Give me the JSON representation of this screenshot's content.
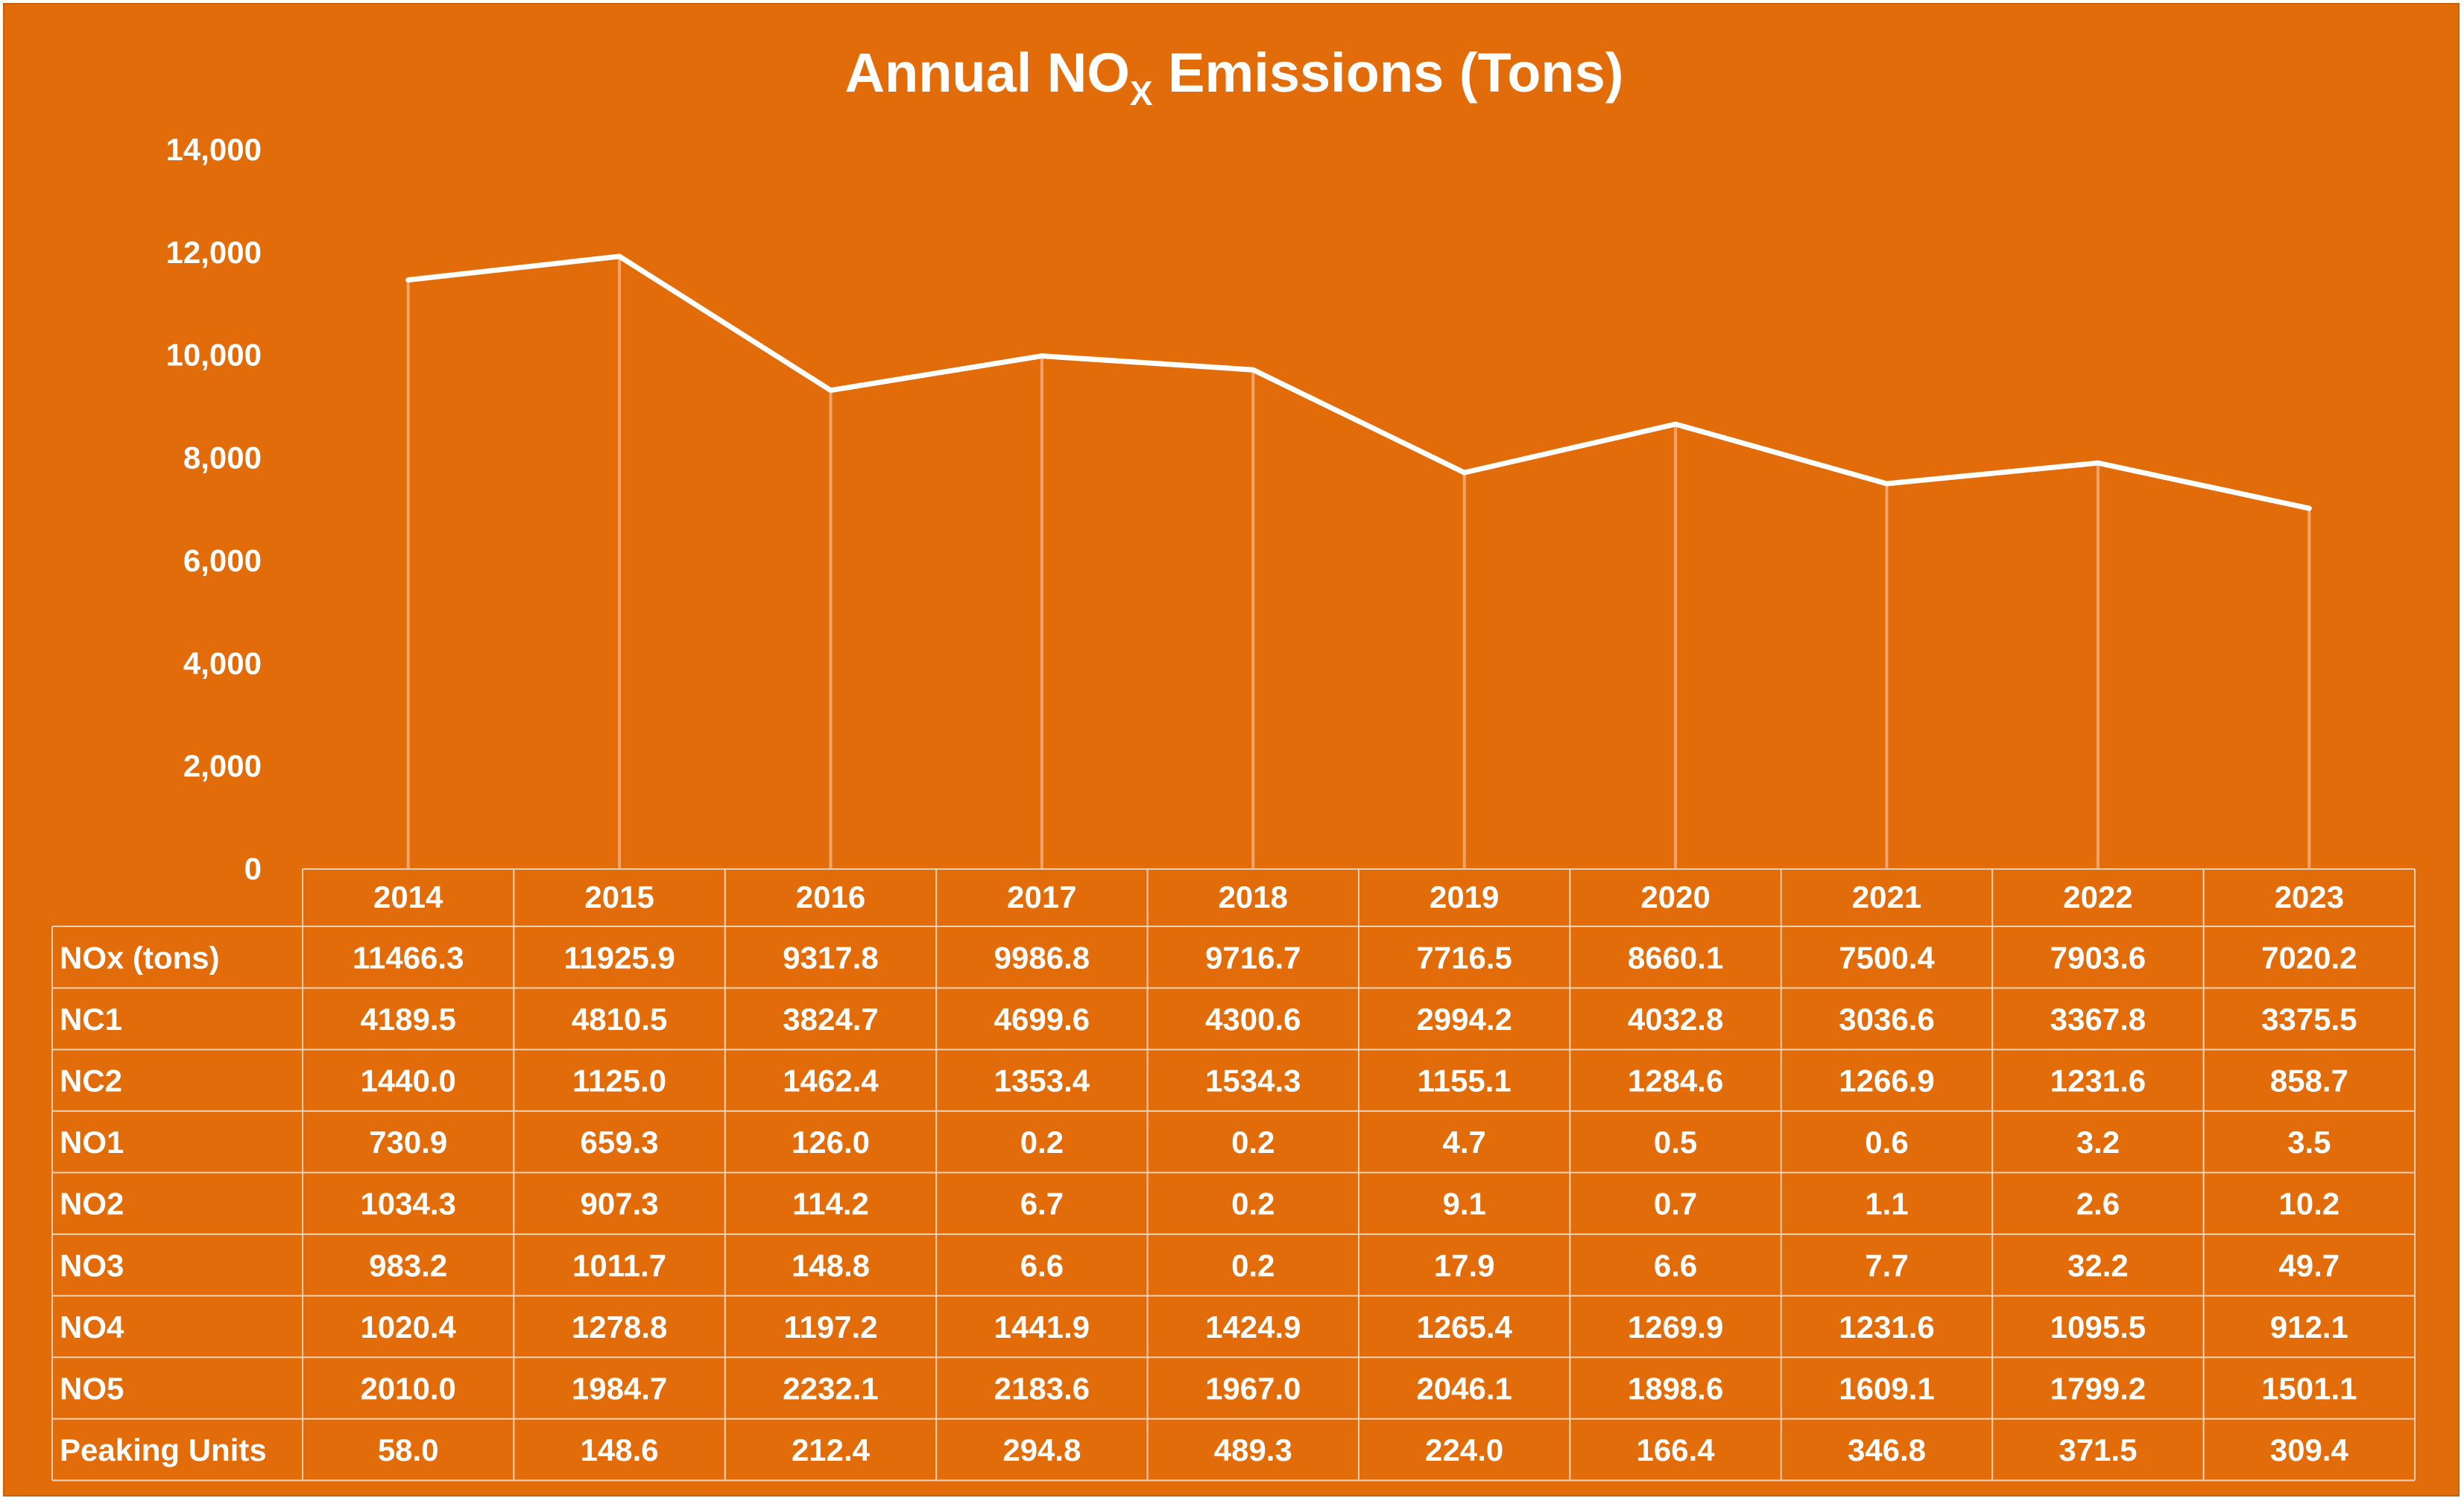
{
  "chart_data": {
    "type": "line",
    "title": "Annual NO",
    "title_subscript": "X",
    "title_suffix": " Emissions (Tons)",
    "categories": [
      "2014",
      "2015",
      "2016",
      "2017",
      "2018",
      "2019",
      "2020",
      "2021",
      "2022",
      "2023"
    ],
    "ylim": [
      0,
      14000
    ],
    "yticks": [
      0,
      2000,
      4000,
      6000,
      8000,
      10000,
      12000,
      14000
    ],
    "ytick_labels": [
      "0",
      "2,000",
      "4,000",
      "6,000",
      "8,000",
      "10,000",
      "12,000",
      "14,000"
    ],
    "grid": false,
    "line_color": "#ffffff",
    "drop_line_color": "#F4A46A",
    "series": [
      {
        "name": "NOx (tons)",
        "values": [
          11466.3,
          11925.9,
          9317.8,
          9986.8,
          9716.7,
          7716.5,
          8660.1,
          7500.4,
          7903.6,
          7020.2
        ]
      }
    ],
    "data_table": {
      "rows": [
        {
          "label": "NOx (tons)",
          "values": [
            "11466.3",
            "11925.9",
            "9317.8",
            "9986.8",
            "9716.7",
            "7716.5",
            "8660.1",
            "7500.4",
            "7903.6",
            "7020.2"
          ]
        },
        {
          "label": "NC1",
          "values": [
            "4189.5",
            "4810.5",
            "3824.7",
            "4699.6",
            "4300.6",
            "2994.2",
            "4032.8",
            "3036.6",
            "3367.8",
            "3375.5"
          ]
        },
        {
          "label": "NC2",
          "values": [
            "1440.0",
            "1125.0",
            "1462.4",
            "1353.4",
            "1534.3",
            "1155.1",
            "1284.6",
            "1266.9",
            "1231.6",
            "858.7"
          ]
        },
        {
          "label": "NO1",
          "values": [
            "730.9",
            "659.3",
            "126.0",
            "0.2",
            "0.2",
            "4.7",
            "0.5",
            "0.6",
            "3.2",
            "3.5"
          ]
        },
        {
          "label": "NO2",
          "values": [
            "1034.3",
            "907.3",
            "114.2",
            "6.7",
            "0.2",
            "9.1",
            "0.7",
            "1.1",
            "2.6",
            "10.2"
          ]
        },
        {
          "label": "NO3",
          "values": [
            "983.2",
            "1011.7",
            "148.8",
            "6.6",
            "0.2",
            "17.9",
            "6.6",
            "7.7",
            "32.2",
            "49.7"
          ]
        },
        {
          "label": "NO4",
          "values": [
            "1020.4",
            "1278.8",
            "1197.2",
            "1441.9",
            "1424.9",
            "1265.4",
            "1269.9",
            "1231.6",
            "1095.5",
            "912.1"
          ]
        },
        {
          "label": "NO5",
          "values": [
            "2010.0",
            "1984.7",
            "2232.1",
            "2183.6",
            "1967.0",
            "2046.1",
            "1898.6",
            "1609.1",
            "1799.2",
            "1501.1"
          ]
        },
        {
          "label": "Peaking Units",
          "values": [
            "58.0",
            "148.6",
            "212.4",
            "294.8",
            "489.3",
            "224.0",
            "166.4",
            "346.8",
            "371.5",
            "309.4"
          ]
        }
      ]
    }
  },
  "colors": {
    "background": "#E36C0A",
    "text": "#ffffff",
    "table_border": "#F6D2B4"
  }
}
